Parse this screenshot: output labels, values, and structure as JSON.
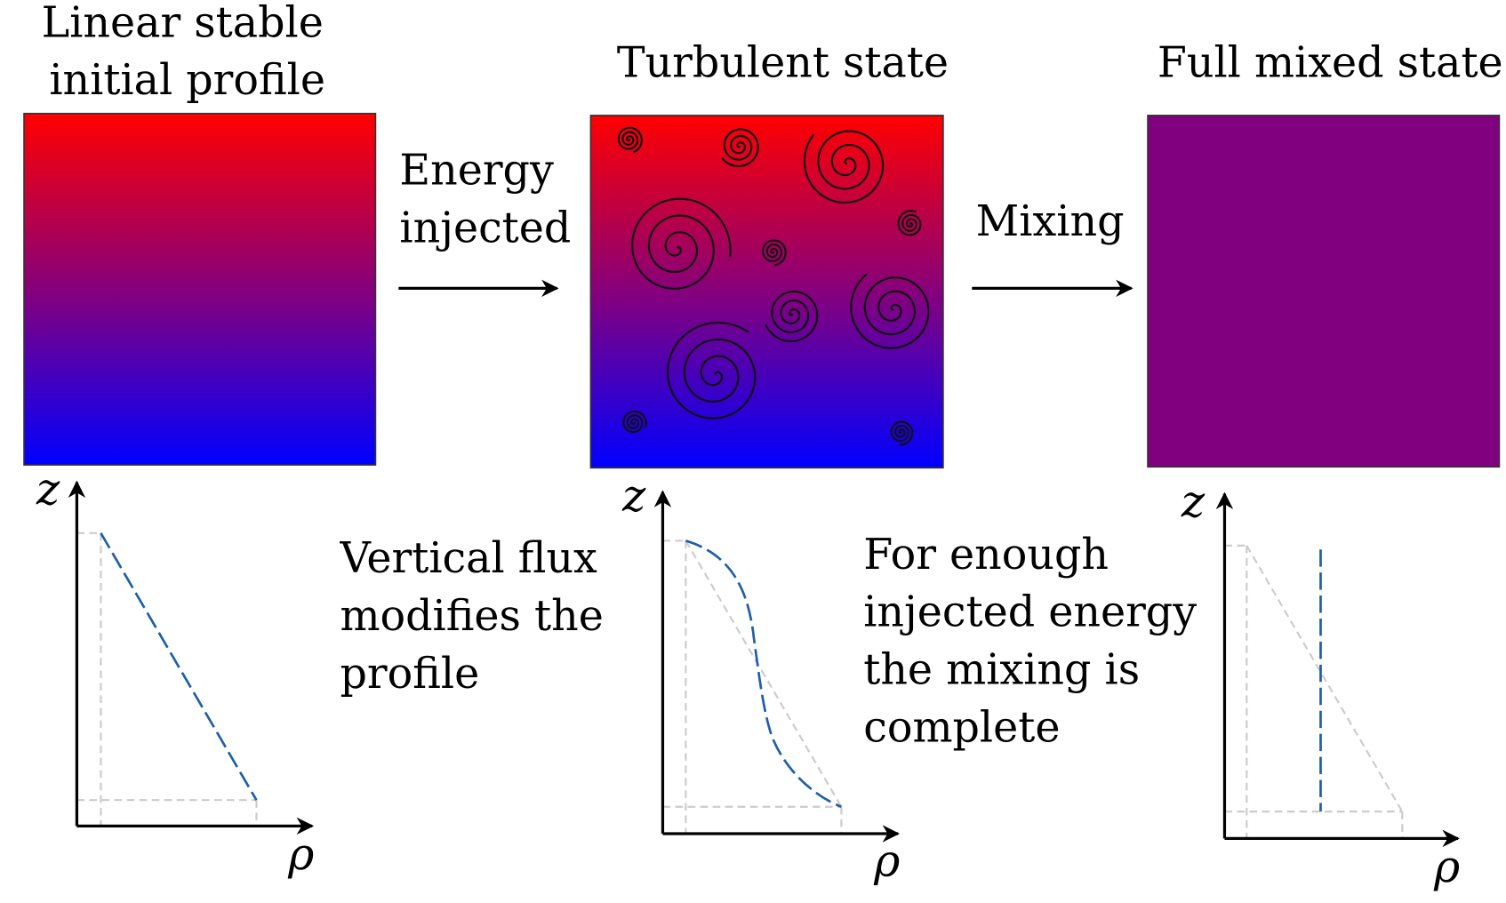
{
  "panels": [
    {
      "title": [
        "Linear stable",
        "initial profile"
      ],
      "z_label": "z",
      "rho_label": "ρ"
    },
    {
      "title": [
        "Turbulent state"
      ],
      "z_label": "z",
      "rho_label": "ρ"
    },
    {
      "title": [
        "Full mixed state"
      ],
      "z_label": "z",
      "rho_label": "ρ"
    }
  ],
  "transitions": [
    {
      "label": [
        "Energy",
        "injected"
      ]
    },
    {
      "label": [
        "Mixing"
      ]
    }
  ],
  "notes": [
    [
      "Vertical flux",
      "modifies the",
      "profile"
    ],
    [
      "For enough",
      "injected energy",
      "the mixing is",
      "complete"
    ]
  ]
}
